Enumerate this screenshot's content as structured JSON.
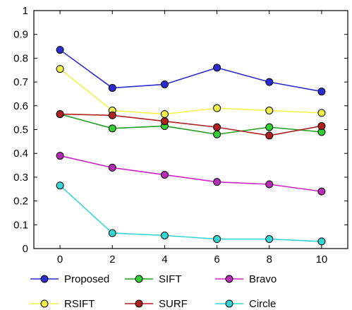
{
  "chart_data": {
    "type": "line",
    "x": [
      0,
      2,
      4,
      6,
      8,
      10
    ],
    "xlim": [
      -1,
      11
    ],
    "ylim": [
      0,
      1
    ],
    "xticks": [
      "0",
      "2",
      "4",
      "6",
      "8",
      "10"
    ],
    "yticks": [
      "0",
      "0.1",
      "0.2",
      "0.3",
      "0.4",
      "0.5",
      "0.6",
      "0.7",
      "0.8",
      "0.9",
      "1"
    ],
    "grid": false,
    "legend_position": "bottom",
    "series": [
      {
        "name": "Proposed",
        "color": "#2b2bd1",
        "marker_fill": "#2b2bd1",
        "values": [
          0.835,
          0.675,
          0.69,
          0.76,
          0.7,
          0.66
        ]
      },
      {
        "name": "SIFT",
        "color": "#1fa01f",
        "marker_fill": "#2fd12f",
        "values": [
          0.565,
          0.505,
          0.515,
          0.48,
          0.51,
          0.49
        ]
      },
      {
        "name": "Bravo",
        "color": "#d022c8",
        "marker_fill": "#b52bb5",
        "values": [
          0.39,
          0.34,
          0.31,
          0.28,
          0.27,
          0.24
        ]
      },
      {
        "name": "RSIFT",
        "color": "#f2f24a",
        "marker_fill": "#f2f24a",
        "values": [
          0.755,
          0.58,
          0.565,
          0.59,
          0.58,
          0.57
        ]
      },
      {
        "name": "SURF",
        "color": "#b02020",
        "marker_fill": "#b02020",
        "values": [
          0.565,
          0.56,
          0.535,
          0.51,
          0.475,
          0.515
        ]
      },
      {
        "name": "Circle",
        "color": "#35d6d6",
        "marker_fill": "#35d6d6",
        "values": [
          0.265,
          0.065,
          0.055,
          0.04,
          0.04,
          0.03
        ]
      }
    ]
  }
}
